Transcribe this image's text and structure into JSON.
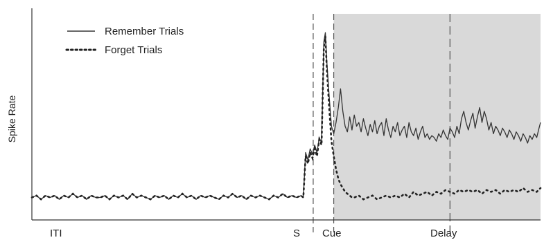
{
  "chart_data": {
    "type": "line",
    "title": "",
    "xlabel": "",
    "ylabel": "Spike Rate",
    "grid": false,
    "legend_position": "top-left",
    "colors": {
      "remember": "#333333",
      "forget": "#222222",
      "shaded_region": "#d9d9d9",
      "axis": "#333333",
      "epoch_divider": "#555555"
    },
    "epochs": [
      {
        "label": "ITI"
      },
      {
        "label": "S"
      },
      {
        "label": "Cue"
      },
      {
        "label": "Delay"
      }
    ],
    "series": [
      {
        "name": "Remember Trials",
        "style": "solid",
        "values": [
          [
            0,
            12
          ],
          [
            6,
            13
          ],
          [
            12,
            11
          ],
          [
            18,
            13
          ],
          [
            24,
            12
          ],
          [
            30,
            13
          ],
          [
            36,
            11
          ],
          [
            42,
            13
          ],
          [
            48,
            12
          ],
          [
            54,
            14
          ],
          [
            60,
            12
          ],
          [
            66,
            13
          ],
          [
            72,
            11
          ],
          [
            78,
            13
          ],
          [
            84,
            12
          ],
          [
            90,
            12
          ],
          [
            96,
            13
          ],
          [
            102,
            11
          ],
          [
            108,
            13
          ],
          [
            114,
            12
          ],
          [
            120,
            13
          ],
          [
            126,
            11
          ],
          [
            132,
            14
          ],
          [
            138,
            12
          ],
          [
            144,
            13
          ],
          [
            150,
            12
          ],
          [
            156,
            11
          ],
          [
            162,
            13
          ],
          [
            168,
            12
          ],
          [
            174,
            13
          ],
          [
            180,
            11
          ],
          [
            186,
            13
          ],
          [
            192,
            12
          ],
          [
            198,
            14
          ],
          [
            204,
            12
          ],
          [
            210,
            13
          ],
          [
            216,
            11
          ],
          [
            222,
            13
          ],
          [
            228,
            12
          ],
          [
            234,
            13
          ],
          [
            240,
            12
          ],
          [
            246,
            11
          ],
          [
            252,
            13
          ],
          [
            258,
            12
          ],
          [
            264,
            14
          ],
          [
            270,
            12
          ],
          [
            276,
            13
          ],
          [
            282,
            11
          ],
          [
            288,
            13
          ],
          [
            294,
            12
          ],
          [
            300,
            13
          ],
          [
            306,
            12
          ],
          [
            312,
            11
          ],
          [
            318,
            13
          ],
          [
            324,
            12
          ],
          [
            330,
            14
          ],
          [
            336,
            12
          ],
          [
            342,
            13
          ],
          [
            348,
            12
          ],
          [
            354,
            13
          ],
          [
            357,
            12
          ],
          [
            360,
            36
          ],
          [
            363,
            32
          ],
          [
            366,
            38
          ],
          [
            369,
            35
          ],
          [
            372,
            40
          ],
          [
            375,
            36
          ],
          [
            378,
            44
          ],
          [
            381,
            41
          ],
          [
            384,
            95
          ],
          [
            386,
            100
          ],
          [
            388,
            84
          ],
          [
            391,
            66
          ],
          [
            394,
            50
          ],
          [
            397,
            46
          ],
          [
            400,
            52
          ],
          [
            403,
            60
          ],
          [
            406,
            70
          ],
          [
            409,
            58
          ],
          [
            412,
            50
          ],
          [
            415,
            47
          ],
          [
            418,
            55
          ],
          [
            421,
            48
          ],
          [
            424,
            56
          ],
          [
            427,
            50
          ],
          [
            430,
            52
          ],
          [
            433,
            47
          ],
          [
            436,
            54
          ],
          [
            439,
            49
          ],
          [
            442,
            45
          ],
          [
            445,
            51
          ],
          [
            448,
            47
          ],
          [
            451,
            53
          ],
          [
            454,
            46
          ],
          [
            457,
            50
          ],
          [
            460,
            52
          ],
          [
            463,
            45
          ],
          [
            466,
            54
          ],
          [
            469,
            48
          ],
          [
            472,
            44
          ],
          [
            475,
            50
          ],
          [
            478,
            47
          ],
          [
            481,
            52
          ],
          [
            484,
            45
          ],
          [
            487,
            48
          ],
          [
            490,
            50
          ],
          [
            493,
            44
          ],
          [
            496,
            52
          ],
          [
            499,
            47
          ],
          [
            502,
            45
          ],
          [
            505,
            49
          ],
          [
            508,
            43
          ],
          [
            511,
            47
          ],
          [
            514,
            50
          ],
          [
            517,
            44
          ],
          [
            520,
            46
          ],
          [
            523,
            43
          ],
          [
            526,
            45
          ],
          [
            529,
            44
          ],
          [
            532,
            42
          ],
          [
            535,
            46
          ],
          [
            538,
            44
          ],
          [
            541,
            48
          ],
          [
            544,
            45
          ],
          [
            547,
            43
          ],
          [
            550,
            49
          ],
          [
            553,
            47
          ],
          [
            556,
            44
          ],
          [
            559,
            50
          ],
          [
            562,
            46
          ],
          [
            565,
            54
          ],
          [
            568,
            58
          ],
          [
            571,
            52
          ],
          [
            574,
            48
          ],
          [
            577,
            53
          ],
          [
            580,
            57
          ],
          [
            583,
            49
          ],
          [
            586,
            55
          ],
          [
            589,
            60
          ],
          [
            592,
            52
          ],
          [
            595,
            58
          ],
          [
            598,
            54
          ],
          [
            601,
            48
          ],
          [
            604,
            52
          ],
          [
            607,
            46
          ],
          [
            610,
            50
          ],
          [
            613,
            48
          ],
          [
            616,
            45
          ],
          [
            619,
            49
          ],
          [
            622,
            47
          ],
          [
            625,
            44
          ],
          [
            628,
            48
          ],
          [
            631,
            46
          ],
          [
            634,
            43
          ],
          [
            637,
            47
          ],
          [
            640,
            45
          ],
          [
            643,
            42
          ],
          [
            646,
            46
          ],
          [
            649,
            44
          ],
          [
            652,
            41
          ],
          [
            655,
            45
          ],
          [
            658,
            43
          ],
          [
            661,
            46
          ],
          [
            664,
            44
          ],
          [
            667,
            49
          ],
          [
            669,
            52
          ]
        ]
      },
      {
        "name": "Forget Trials",
        "style": "dotted",
        "values": [
          [
            0,
            12
          ],
          [
            6,
            13
          ],
          [
            12,
            11
          ],
          [
            18,
            13
          ],
          [
            24,
            12
          ],
          [
            30,
            13
          ],
          [
            36,
            11
          ],
          [
            42,
            13
          ],
          [
            48,
            12
          ],
          [
            54,
            14
          ],
          [
            60,
            12
          ],
          [
            66,
            13
          ],
          [
            72,
            11
          ],
          [
            78,
            13
          ],
          [
            84,
            12
          ],
          [
            90,
            12
          ],
          [
            96,
            13
          ],
          [
            102,
            11
          ],
          [
            108,
            13
          ],
          [
            114,
            12
          ],
          [
            120,
            13
          ],
          [
            126,
            11
          ],
          [
            132,
            14
          ],
          [
            138,
            12
          ],
          [
            144,
            13
          ],
          [
            150,
            12
          ],
          [
            156,
            11
          ],
          [
            162,
            13
          ],
          [
            168,
            12
          ],
          [
            174,
            13
          ],
          [
            180,
            11
          ],
          [
            186,
            13
          ],
          [
            192,
            12
          ],
          [
            198,
            14
          ],
          [
            204,
            12
          ],
          [
            210,
            13
          ],
          [
            216,
            11
          ],
          [
            222,
            13
          ],
          [
            228,
            12
          ],
          [
            234,
            13
          ],
          [
            240,
            12
          ],
          [
            246,
            11
          ],
          [
            252,
            13
          ],
          [
            258,
            12
          ],
          [
            264,
            14
          ],
          [
            270,
            12
          ],
          [
            276,
            13
          ],
          [
            282,
            11
          ],
          [
            288,
            13
          ],
          [
            294,
            12
          ],
          [
            300,
            13
          ],
          [
            306,
            12
          ],
          [
            312,
            11
          ],
          [
            318,
            13
          ],
          [
            324,
            12
          ],
          [
            330,
            14
          ],
          [
            336,
            12
          ],
          [
            342,
            13
          ],
          [
            348,
            12
          ],
          [
            354,
            13
          ],
          [
            357,
            12
          ],
          [
            360,
            34
          ],
          [
            363,
            30
          ],
          [
            366,
            36
          ],
          [
            369,
            33
          ],
          [
            372,
            38
          ],
          [
            375,
            34
          ],
          [
            378,
            43
          ],
          [
            381,
            40
          ],
          [
            384,
            92
          ],
          [
            386,
            98
          ],
          [
            388,
            80
          ],
          [
            391,
            60
          ],
          [
            394,
            42
          ],
          [
            397,
            34
          ],
          [
            400,
            27
          ],
          [
            403,
            22
          ],
          [
            406,
            19
          ],
          [
            409,
            17
          ],
          [
            412,
            15
          ],
          [
            415,
            14
          ],
          [
            418,
            13
          ],
          [
            421,
            12
          ],
          [
            424,
            12
          ],
          [
            430,
            13
          ],
          [
            436,
            11
          ],
          [
            442,
            12
          ],
          [
            448,
            13
          ],
          [
            454,
            11
          ],
          [
            460,
            12
          ],
          [
            466,
            13
          ],
          [
            472,
            12
          ],
          [
            478,
            13
          ],
          [
            484,
            12
          ],
          [
            490,
            14
          ],
          [
            496,
            12
          ],
          [
            502,
            15
          ],
          [
            508,
            13
          ],
          [
            514,
            14
          ],
          [
            520,
            15
          ],
          [
            526,
            13
          ],
          [
            532,
            15
          ],
          [
            538,
            14
          ],
          [
            544,
            16
          ],
          [
            550,
            15
          ],
          [
            556,
            14
          ],
          [
            562,
            16
          ],
          [
            568,
            15
          ],
          [
            574,
            16
          ],
          [
            580,
            15
          ],
          [
            586,
            16
          ],
          [
            592,
            14
          ],
          [
            598,
            16
          ],
          [
            604,
            15
          ],
          [
            610,
            16
          ],
          [
            616,
            14
          ],
          [
            622,
            16
          ],
          [
            628,
            15
          ],
          [
            634,
            16
          ],
          [
            640,
            15
          ],
          [
            646,
            17
          ],
          [
            652,
            15
          ],
          [
            658,
            16
          ],
          [
            664,
            15
          ],
          [
            669,
            17
          ]
        ]
      }
    ],
    "xlim": [
      0,
      669
    ],
    "ylim": [
      0,
      110
    ],
    "dividers": [
      {
        "x": 370,
        "style": "dashed"
      },
      {
        "x": 397,
        "style": "dashed"
      },
      {
        "x": 550,
        "style": "dashed-gray"
      }
    ],
    "shaded_region": {
      "x_start": 397,
      "x_end": 669
    }
  }
}
